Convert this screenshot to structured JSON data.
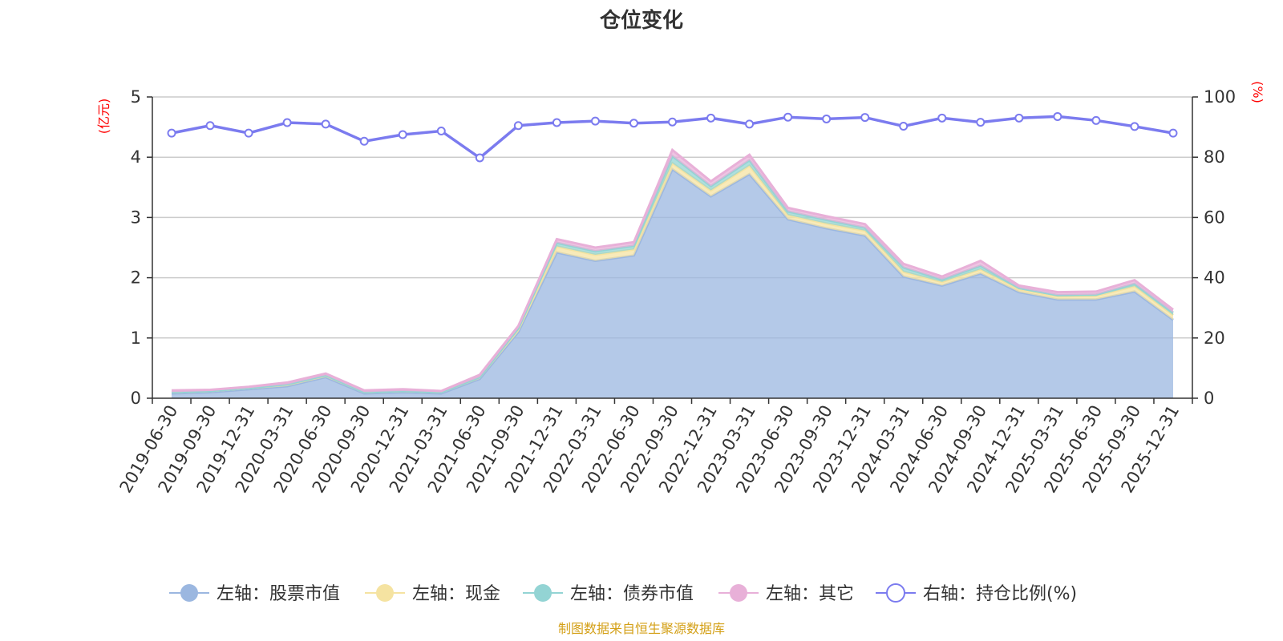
{
  "title": "仓位变化",
  "source": "制图数据来自恒生聚源数据库",
  "chart_data": {
    "type": "area",
    "title": "仓位变化",
    "left_axis": {
      "unit": "(亿元)",
      "ylim": [
        0,
        5
      ],
      "ticks": [
        0,
        1,
        2,
        3,
        4,
        5
      ]
    },
    "right_axis": {
      "unit": "(%)",
      "ylim": [
        0,
        100
      ],
      "ticks": [
        0,
        20,
        40,
        60,
        80,
        100
      ]
    },
    "categories": [
      "2019-06-30",
      "2019-09-30",
      "2019-12-31",
      "2020-03-31",
      "2020-06-30",
      "2020-09-30",
      "2020-12-31",
      "2021-03-31",
      "2021-06-30",
      "2021-09-30",
      "2021-12-31",
      "2022-03-31",
      "2022-06-30",
      "2022-09-30",
      "2022-12-31",
      "2023-03-31",
      "2023-06-30",
      "2023-09-30",
      "2023-12-31",
      "2024-03-31",
      "2024-06-30",
      "2024-09-30",
      "2024-12-31",
      "2025-03-31",
      "2025-06-30",
      "2025-09-30",
      "2025-12-31"
    ],
    "stacked": true,
    "grid": true,
    "legend_position": "bottom",
    "series": [
      {
        "name": "左轴：股票市值",
        "axis": "left",
        "type": "area",
        "color": "#9bb7e0",
        "values": [
          0.08,
          0.1,
          0.15,
          0.2,
          0.35,
          0.08,
          0.1,
          0.08,
          0.32,
          1.1,
          2.42,
          2.28,
          2.37,
          3.8,
          3.35,
          3.72,
          2.97,
          2.82,
          2.7,
          2.02,
          1.87,
          2.07,
          1.76,
          1.64,
          1.64,
          1.77,
          1.3
        ]
      },
      {
        "name": "左轴：现金",
        "axis": "left",
        "type": "area",
        "color": "#f5e3a1",
        "values": [
          0.02,
          0.02,
          0.02,
          0.03,
          0.03,
          0.02,
          0.02,
          0.02,
          0.03,
          0.04,
          0.1,
          0.1,
          0.1,
          0.1,
          0.1,
          0.14,
          0.07,
          0.08,
          0.08,
          0.08,
          0.06,
          0.07,
          0.05,
          0.05,
          0.06,
          0.09,
          0.08
        ]
      },
      {
        "name": "左轴：债券市值",
        "axis": "left",
        "type": "area",
        "color": "#93d4d4",
        "values": [
          0,
          0,
          0,
          0,
          0,
          0,
          0,
          0,
          0,
          0.02,
          0.06,
          0.06,
          0.06,
          0.12,
          0.07,
          0.09,
          0.06,
          0.06,
          0.05,
          0.07,
          0.04,
          0.06,
          0.02,
          0.02,
          0.02,
          0.04,
          0.04
        ]
      },
      {
        "name": "左轴：其它",
        "axis": "left",
        "type": "area",
        "color": "#e8b0d8",
        "values": [
          0.03,
          0.02,
          0.02,
          0.03,
          0.03,
          0.03,
          0.03,
          0.02,
          0.04,
          0.04,
          0.06,
          0.06,
          0.06,
          0.1,
          0.08,
          0.09,
          0.06,
          0.06,
          0.06,
          0.06,
          0.05,
          0.08,
          0.04,
          0.05,
          0.05,
          0.06,
          0.05
        ]
      },
      {
        "name": "右轴：持仓比例(%)",
        "axis": "right",
        "type": "line",
        "color": "#7b7bef",
        "values": [
          88,
          90.5,
          88,
          91.5,
          91,
          85.3,
          87.5,
          88.7,
          79.8,
          90.5,
          91.5,
          92,
          91.3,
          91.7,
          93,
          91,
          93.3,
          92.7,
          93.2,
          90.3,
          93,
          91.6,
          93,
          93.5,
          92.2,
          90.2,
          88
        ]
      }
    ]
  }
}
